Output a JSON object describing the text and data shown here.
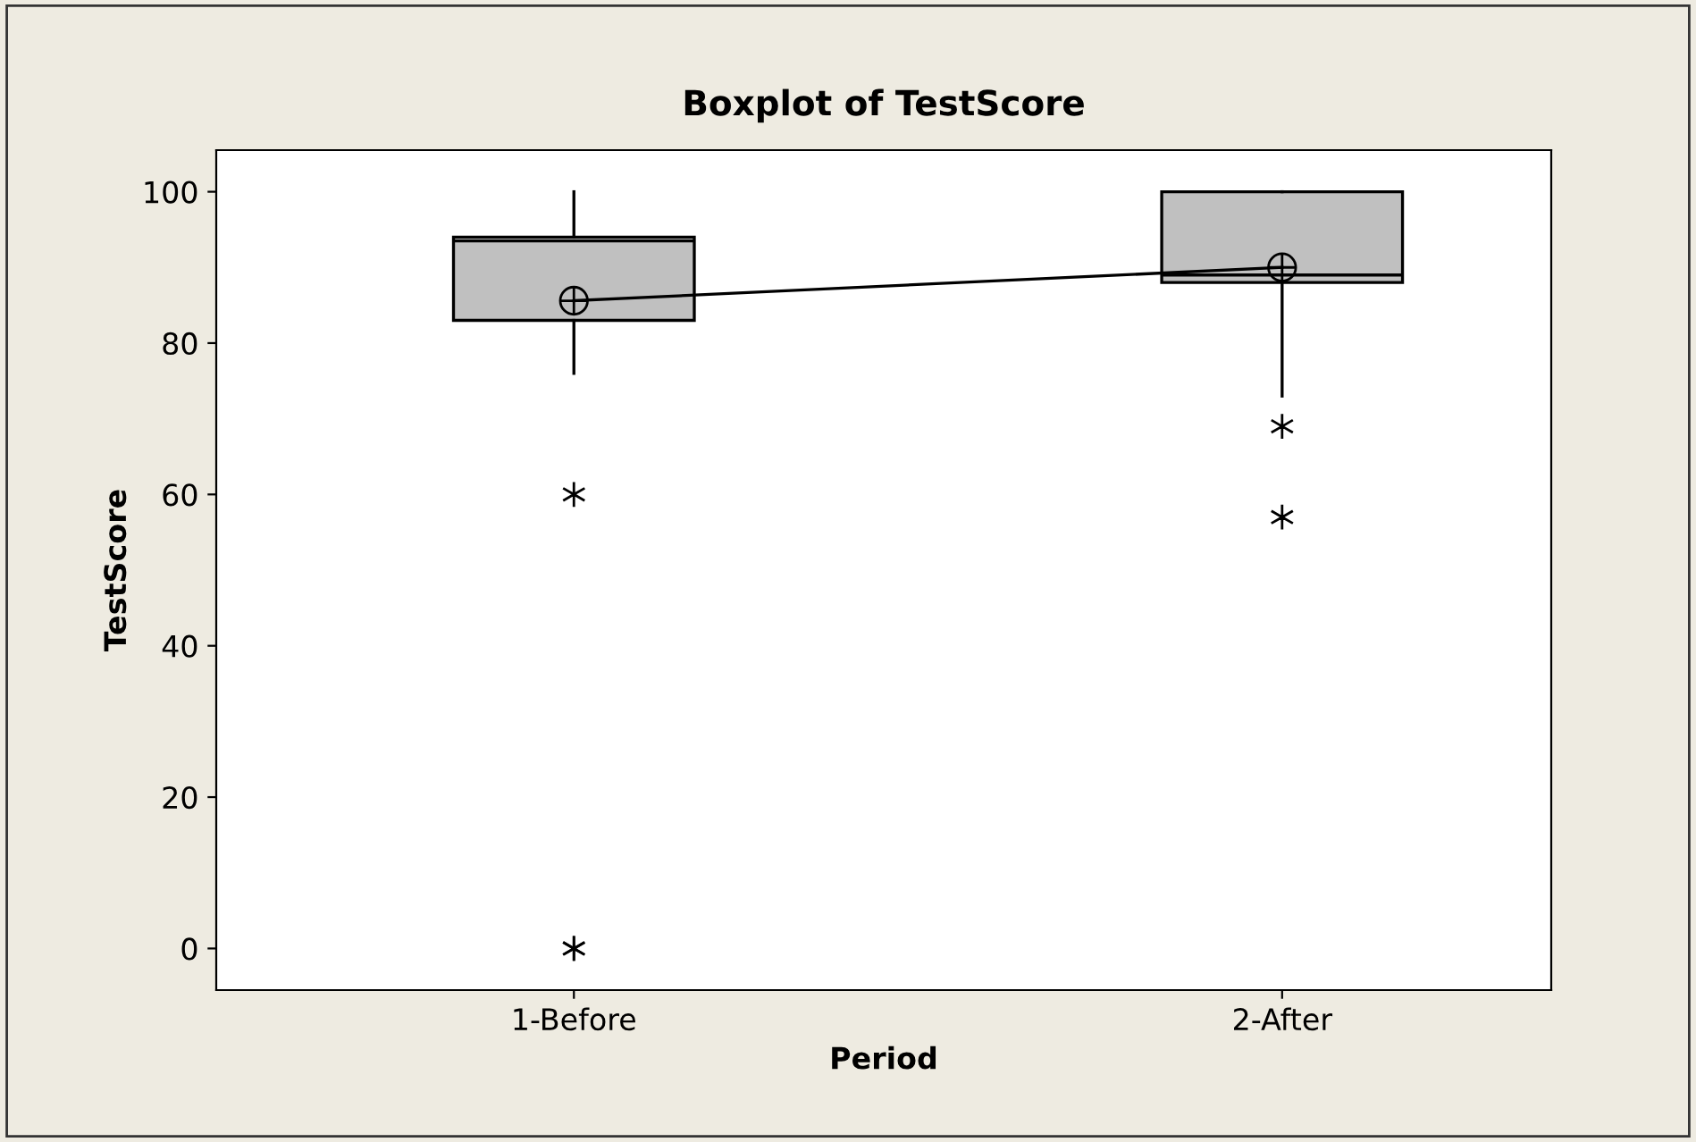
{
  "chart_data": {
    "type": "box",
    "title": "Boxplot of TestScore",
    "xlabel": "Period",
    "ylabel": "TestScore",
    "categories": [
      "1-Before",
      "2-After"
    ],
    "boxes": [
      {
        "low": 76,
        "q1": 83,
        "median": 93.5,
        "q3": 94,
        "high": 100,
        "mean": 85.6,
        "outliers": [
          60,
          0,
          0
        ]
      },
      {
        "low": 73,
        "q1": 88,
        "median": 89,
        "q3": 100,
        "high": 100,
        "mean": 90,
        "outliers": [
          69,
          57
        ]
      }
    ],
    "series": [
      {
        "type": "line",
        "color": "#000000",
        "values": [
          85.6,
          90
        ]
      }
    ],
    "color": "#c0c0c0",
    "ylim": [
      -5.5,
      105.5
    ],
    "yticks": [
      0,
      20,
      40,
      60,
      80,
      100
    ],
    "grid": false,
    "legend": false
  }
}
